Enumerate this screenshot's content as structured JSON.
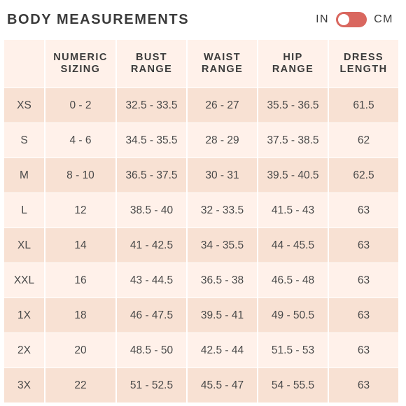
{
  "title": "BODY MEASUREMENTS",
  "unit_toggle": {
    "left_label": "IN",
    "right_label": "CM",
    "accent_color": "#d9675f"
  },
  "table": {
    "headers": [
      "",
      "NUMERIC SIZING",
      "BUST RANGE",
      "WAIST RANGE",
      "HIP RANGE",
      "DRESS LENGTH"
    ],
    "rows": [
      [
        "XS",
        "0 - 2",
        "32.5 - 33.5",
        "26 - 27",
        "35.5 - 36.5",
        "61.5"
      ],
      [
        "S",
        "4 - 6",
        "34.5 - 35.5",
        "28 - 29",
        "37.5 - 38.5",
        "62"
      ],
      [
        "M",
        "8 - 10",
        "36.5 - 37.5",
        "30 - 31",
        "39.5 - 40.5",
        "62.5"
      ],
      [
        "L",
        "12",
        "38.5 - 40",
        "32 - 33.5",
        "41.5 - 43",
        "63"
      ],
      [
        "XL",
        "14",
        "41 - 42.5",
        "34 - 35.5",
        "44 - 45.5",
        "63"
      ],
      [
        "XXL",
        "16",
        "43 - 44.5",
        "36.5 - 38",
        "46.5 - 48",
        "63"
      ],
      [
        "1X",
        "18",
        "46 - 47.5",
        "39.5 - 41",
        "49 - 50.5",
        "63"
      ],
      [
        "2X",
        "20",
        "48.5 - 50",
        "42.5 - 44",
        "51.5 - 53",
        "63"
      ],
      [
        "3X",
        "22",
        "51 - 52.5",
        "45.5 - 47",
        "54 - 55.5",
        "63"
      ]
    ],
    "row_colors": {
      "odd": "#f8e1d3",
      "even": "#fff1ea"
    }
  }
}
